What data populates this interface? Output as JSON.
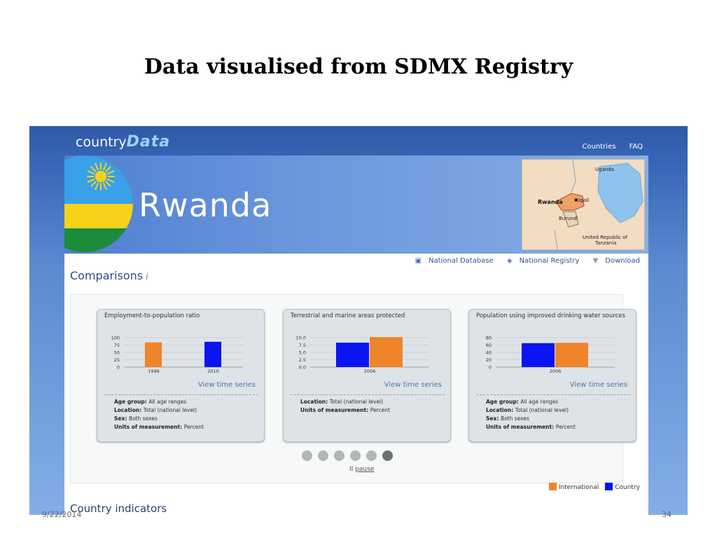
{
  "slide": {
    "title": "Data visualised from SDMX Registry",
    "date": "9/22/2014",
    "page_number": "34"
  },
  "app": {
    "logo_prefix": "country",
    "logo_suffix": "Data",
    "nav": [
      "Countries",
      "FAQ"
    ]
  },
  "banner": {
    "country": "Rwanda",
    "map_labels": [
      "Uganda",
      "Rwanda",
      "Kigali",
      "Burundi",
      "United Republic of",
      "Tanzania"
    ]
  },
  "links": {
    "national_database": "National Database",
    "national_registry": "National Registry",
    "download": "Download"
  },
  "comparisons": {
    "title": "Comparisons",
    "info_icon": "i",
    "view_time_series": "View time series",
    "pause_label": "pause",
    "pause_icon": "II",
    "dots_count": 6,
    "active_dot": 6
  },
  "legend": {
    "international": "International",
    "country": "Country",
    "international_color": "#f0842b",
    "country_color": "#0a14f0"
  },
  "country_indicators_title": "Country indicators",
  "cards": [
    {
      "title": "Employment-to-population ratio",
      "meta": [
        {
          "label": "Age group:",
          "value": "All age ranges"
        },
        {
          "label": "Location:",
          "value": "Total (national level)"
        },
        {
          "label": "Sex:",
          "value": "Both sexes"
        },
        {
          "label": "Units of measurement:",
          "value": "Percent"
        }
      ]
    },
    {
      "title": "Terrestrial and marine areas protected",
      "meta": [
        {
          "label": "Location:",
          "value": "Total (national level)"
        },
        {
          "label": "Units of measurement:",
          "value": "Percent"
        }
      ]
    },
    {
      "title": "Population using improved drinking water sources",
      "meta": [
        {
          "label": "Age group:",
          "value": "All age ranges"
        },
        {
          "label": "Location:",
          "value": "Total (national level)"
        },
        {
          "label": "Sex:",
          "value": "Both sexes"
        },
        {
          "label": "Units of measurement:",
          "value": "Percent"
        }
      ]
    }
  ],
  "chart_data": [
    {
      "type": "bar",
      "title": "Employment-to-population ratio",
      "yticks": [
        "100",
        "75",
        "50",
        "25",
        "0"
      ],
      "ylim": [
        0,
        100
      ],
      "groups": [
        {
          "label": "1996",
          "bars": [
            {
              "series": "International",
              "value": 84
            }
          ]
        },
        {
          "label": "2010",
          "bars": [
            {
              "series": "Country",
              "value": 86
            }
          ]
        }
      ]
    },
    {
      "type": "bar",
      "title": "Terrestrial and marine areas protected",
      "yticks": [
        "10.0",
        "7.5",
        "5.0",
        "2.5",
        "0.0"
      ],
      "ylim": [
        0,
        10
      ],
      "groups": [
        {
          "label": "2006",
          "bars": [
            {
              "series": "Country",
              "value": 8.3
            },
            {
              "series": "International",
              "value": 10.2
            }
          ]
        }
      ]
    },
    {
      "type": "bar",
      "title": "Population using improved drinking water sources",
      "yticks": [
        "80",
        "60",
        "40",
        "20",
        "0"
      ],
      "ylim": [
        0,
        80
      ],
      "groups": [
        {
          "label": "2006",
          "bars": [
            {
              "series": "Country",
              "value": 65
            },
            {
              "series": "International",
              "value": 66
            }
          ]
        }
      ]
    }
  ]
}
